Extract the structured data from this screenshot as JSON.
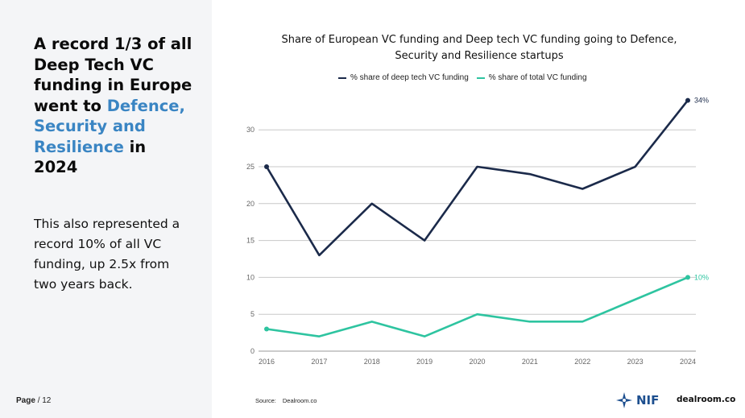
{
  "headline": {
    "part1": "A record 1/3 of all Deep Tech VC funding in Europe went to ",
    "highlight": "Defence, Security and Resilience",
    "part2": " in 2024"
  },
  "subtext": "This also represented a record 10% of all VC funding, up 2.5x from two years back.",
  "footer": {
    "page_prefix": "Page",
    "page_suffix": "/ 12",
    "source_label": "Source:",
    "source_value": "Dealroom.co",
    "nif_label": "NIF",
    "dealroom_label": "dealroom.co"
  },
  "colors": {
    "accent": "#3a85c3",
    "deep_tech_series": "#1b2a4a",
    "total_series": "#2ec4a0",
    "grid": "#c8c8c8",
    "left_panel_bg": "#f4f5f7"
  },
  "chart_data": {
    "type": "line",
    "title": "Share of European VC funding and Deep tech VC funding  going to Defence, Security and Resilience startups",
    "xlabel": "",
    "ylabel": "",
    "x": [
      "2016",
      "2017",
      "2018",
      "2019",
      "2020",
      "2021",
      "2022",
      "2023",
      "2024"
    ],
    "yticks": [
      0,
      5,
      10,
      15,
      20,
      25,
      30
    ],
    "ylim": [
      0,
      35
    ],
    "grid": true,
    "legend_position": "top",
    "series": [
      {
        "name": "% share of deep tech VC funding",
        "values": [
          25,
          13,
          20,
          15,
          25,
          24,
          22,
          25,
          34
        ],
        "end_label": "34%",
        "color": "#1b2a4a"
      },
      {
        "name": "% share of total VC funding",
        "values": [
          3,
          2,
          4,
          2,
          5,
          4,
          4,
          7,
          10
        ],
        "end_label": "10%",
        "color": "#2ec4a0"
      }
    ]
  }
}
